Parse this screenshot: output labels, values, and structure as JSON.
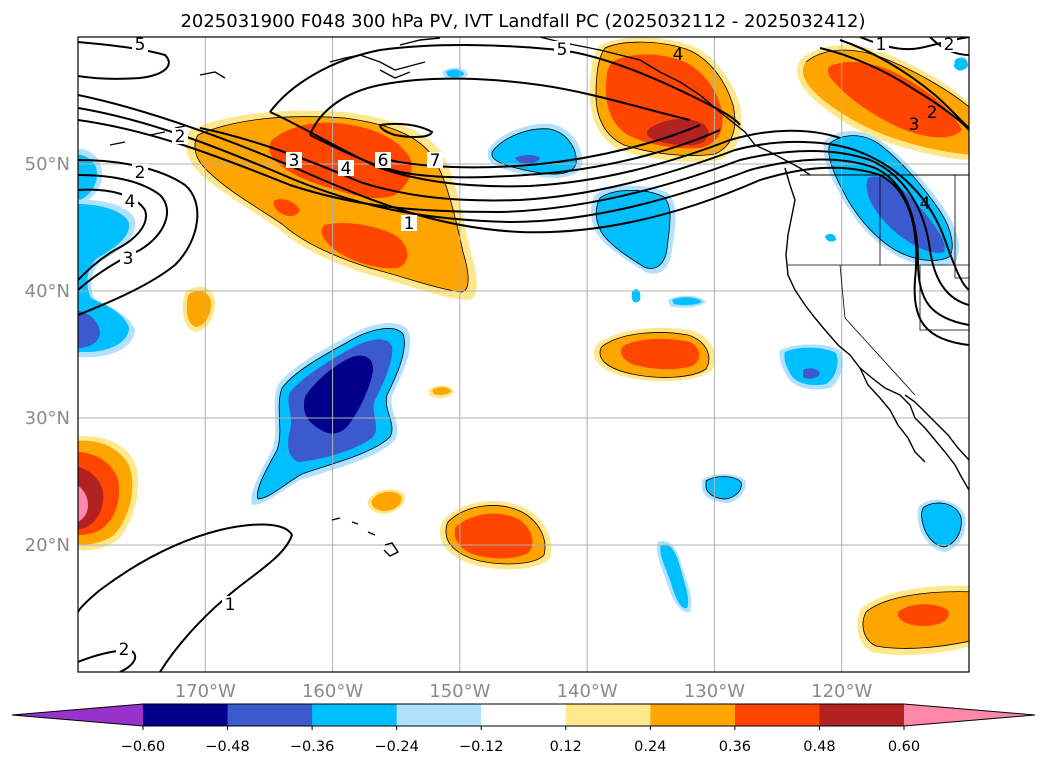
{
  "chart_data": {
    "type": "map",
    "title": "2025031900 F048 300 hPa PV, IVT Landfall PC (2025032112 - 2025032412)",
    "projection": "PlateCarree",
    "lon_range": [
      -180,
      -110
    ],
    "lat_range": [
      10,
      60
    ],
    "lon_ticks": [
      -170,
      -160,
      -150,
      -140,
      -130,
      -120
    ],
    "lon_tick_labels": [
      "170°W",
      "160°W",
      "150°W",
      "140°W",
      "130°W",
      "120°W"
    ],
    "lat_ticks": [
      20,
      30,
      40,
      50
    ],
    "lat_tick_labels": [
      "20°N",
      "30°N",
      "40°N",
      "50°N"
    ],
    "grid": true,
    "filled_field": {
      "levels": [
        -0.6,
        -0.48,
        -0.36,
        -0.24,
        -0.12,
        0.12,
        0.24,
        0.36,
        0.48,
        0.6
      ],
      "colors": [
        "#9932cc",
        "#00008b",
        "#3a5acd",
        "#00bfff",
        "#b0e2ff",
        "#ffffff",
        "#ffe88c",
        "#ffa500",
        "#ff4500",
        "#b22222",
        "#ff87a8"
      ],
      "colorbar_tick_labels": [
        "−0.60",
        "−0.48",
        "−0.36",
        "−0.24",
        "−0.12",
        "0.12",
        "0.24",
        "0.36",
        "0.48",
        "0.60"
      ],
      "extend": "both"
    },
    "contour_field": {
      "name": "300 hPa PV",
      "levels": [
        1,
        2,
        3,
        4,
        5,
        6,
        7
      ],
      "labels_shown": [
        "5",
        "2",
        "2",
        "3",
        "4",
        "6",
        "7",
        "1",
        "4",
        "3",
        "5",
        "4",
        "4",
        "2",
        "3",
        "1",
        "2",
        "1",
        "2"
      ]
    }
  },
  "figure": {
    "title": "2025031900 F048 300 hPa PV, IVT Landfall PC (2025032112 - 2025032412)"
  }
}
